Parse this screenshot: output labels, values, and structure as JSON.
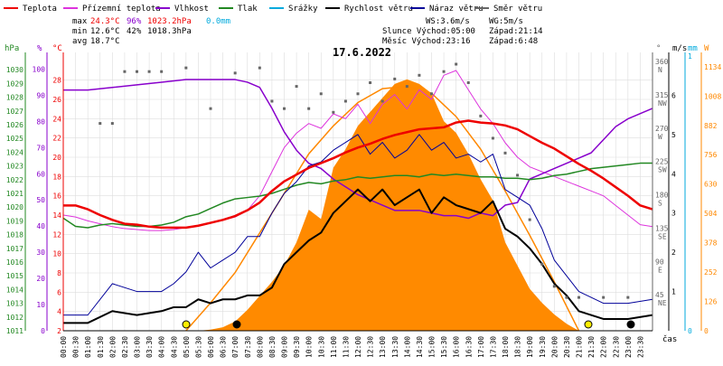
{
  "legend": [
    {
      "label": "Teplota",
      "color": "#ee0000"
    },
    {
      "label": "Přízemní teplota",
      "color": "#dd33dd"
    },
    {
      "label": "Vlhkost",
      "color": "#8800cc"
    },
    {
      "label": "Tlak",
      "color": "#228822"
    },
    {
      "label": "Srážky",
      "color": "#00aadd"
    },
    {
      "label": "Rychlost větru",
      "color": "#000000"
    },
    {
      "label": "Náraz větru",
      "color": "#000099"
    },
    {
      "label": "Směr větru",
      "color": "#666666"
    }
  ],
  "stats": {
    "max_label": "max",
    "min_label": "min",
    "avg_label": "avg",
    "max_temp": "24.3°C",
    "max_hum": "96%",
    "max_press": "1023.2hPa",
    "max_rain": "0.0mm",
    "min_temp": "12.6°C",
    "min_hum": "42%",
    "min_press": "1018.3hPa",
    "avg_temp": "18.7°C"
  },
  "info": {
    "wind_speed": "WS:3.6m/s",
    "wind_gust": "WG:5m/s",
    "sun": "Slunce Východ:05:00",
    "sunset": "Západ:21:14",
    "moon": "Měsíc Východ:23:16",
    "moonset": "Západ:6:48"
  },
  "colors": {
    "temp": "#ee0000",
    "ground": "#dd33dd",
    "humidity": "#8800cc",
    "pressure": "#228822",
    "rain": "#00aadd",
    "wind": "#000000",
    "gust": "#000099",
    "direction": "#666666",
    "solar": "#ff8800",
    "solar_fill": "#ff8a00",
    "grid": "#dddddd"
  },
  "chart_data": {
    "type": "line",
    "title": "17.6.2022",
    "xlabel": "čas",
    "x_ticks": [
      "00:00",
      "00:30",
      "01:00",
      "01:30",
      "02:00",
      "02:30",
      "03:00",
      "03:30",
      "04:00",
      "04:30",
      "05:00",
      "05:30",
      "06:00",
      "06:30",
      "07:00",
      "07:30",
      "08:00",
      "08:30",
      "09:00",
      "09:30",
      "10:00",
      "10:30",
      "11:00",
      "11:30",
      "12:00",
      "12:30",
      "13:00",
      "13:30",
      "14:00",
      "14:30",
      "15:00",
      "15:30",
      "16:00",
      "16:30",
      "17:00",
      "17:30",
      "18:00",
      "18:30",
      "19:00",
      "19:30",
      "20:00",
      "20:30",
      "21:00",
      "21:30",
      "22:00",
      "22:30",
      "23:00",
      "23:30"
    ],
    "xlim": [
      0,
      24
    ],
    "axes": {
      "pressure": {
        "unit": "hPa",
        "range": [
          1011,
          1031
        ],
        "ticks": [
          1011,
          1012,
          1013,
          1014,
          1015,
          1016,
          1017,
          1018,
          1019,
          1020,
          1021,
          1022,
          1023,
          1024,
          1025,
          1026,
          1027,
          1028,
          1029,
          1030
        ]
      },
      "humidity": {
        "unit": "%",
        "range": [
          0,
          105
        ],
        "ticks": [
          0,
          10,
          20,
          30,
          40,
          50,
          60,
          70,
          80,
          90,
          100
        ]
      },
      "temperature": {
        "unit": "°C",
        "range": [
          2,
          30.5
        ],
        "ticks": [
          2,
          4,
          6,
          8,
          10,
          12,
          14,
          16,
          18,
          20,
          22,
          24,
          26,
          28
        ]
      },
      "direction": {
        "unit": "°",
        "range": [
          0,
          371
        ],
        "ticks": [
          {
            "v": 45,
            "l": "45",
            "d": "NE"
          },
          {
            "v": 90,
            "l": "90",
            "d": "E"
          },
          {
            "v": 135,
            "l": "135",
            "d": "SE"
          },
          {
            "v": 180,
            "l": "180",
            "d": "S"
          },
          {
            "v": 225,
            "l": "225",
            "d": "SW"
          },
          {
            "v": 270,
            "l": "270",
            "d": "W"
          },
          {
            "v": 315,
            "l": "315",
            "d": "NW"
          },
          {
            "v": 360,
            "l": "360",
            "d": "N"
          }
        ]
      },
      "wind": {
        "unit": "m/s",
        "range": [
          0,
          7
        ],
        "ticks": [
          1,
          2,
          3,
          4,
          5,
          6
        ]
      },
      "rain": {
        "unit": "mm",
        "range": [
          0,
          1
        ],
        "ticks": [
          0,
          1
        ]
      },
      "solar": {
        "unit": "W",
        "range": [
          0,
          1180
        ],
        "ticks": [
          0,
          126,
          252,
          378,
          504,
          630,
          756,
          882,
          1008,
          1134
        ]
      }
    },
    "series": [
      {
        "name": "Teplota",
        "axis": "temperature",
        "x": [
          0,
          0.5,
          1,
          1.5,
          2,
          2.5,
          3,
          3.5,
          4,
          4.5,
          5,
          5.5,
          6,
          6.5,
          7,
          7.5,
          8,
          8.5,
          9,
          9.5,
          10,
          10.5,
          11,
          11.5,
          12,
          12.5,
          13,
          13.5,
          14,
          14.5,
          15,
          15.5,
          16,
          16.5,
          17,
          17.5,
          18,
          18.5,
          19,
          19.5,
          20,
          20.5,
          21,
          21.5,
          22,
          22.5,
          23,
          23.5,
          24
        ],
        "y": [
          15.0,
          15.0,
          14.6,
          14.0,
          13.5,
          13.1,
          13.0,
          12.8,
          12.7,
          12.7,
          12.7,
          12.9,
          13.2,
          13.5,
          13.9,
          14.5,
          15.3,
          16.5,
          17.5,
          18.2,
          18.9,
          19.4,
          19.9,
          20.5,
          21.0,
          21.4,
          21.9,
          22.3,
          22.6,
          22.9,
          23.0,
          23.1,
          23.6,
          23.8,
          23.6,
          23.5,
          23.3,
          22.9,
          22.2,
          21.5,
          20.9,
          20.1,
          19.3,
          18.6,
          17.8,
          16.9,
          16.0,
          15.0,
          14.6
        ]
      },
      {
        "name": "Přízemní teplota",
        "axis": "temperature",
        "x": [
          0,
          0.5,
          1,
          1.5,
          2,
          2.5,
          3,
          3.5,
          4,
          4.5,
          5,
          5.5,
          6,
          6.5,
          7,
          7.5,
          8,
          8.5,
          9,
          9.5,
          10,
          10.5,
          11,
          11.5,
          12,
          12.5,
          13,
          13.5,
          14,
          14.5,
          15,
          15.5,
          16,
          16.5,
          17,
          17.5,
          18,
          18.5,
          19,
          19.5,
          20,
          20.5,
          21,
          21.5,
          22,
          22.5,
          23,
          23.5,
          24
        ],
        "y": [
          14.0,
          13.8,
          13.4,
          13.1,
          12.8,
          12.6,
          12.5,
          12.4,
          12.4,
          12.5,
          12.7,
          12.9,
          13.2,
          13.5,
          13.8,
          14.5,
          16.0,
          18.5,
          21.0,
          22.5,
          23.5,
          23.0,
          24.5,
          24.0,
          25.5,
          23.5,
          25.5,
          26.5,
          25.0,
          27.0,
          26.0,
          28.5,
          29.0,
          27.0,
          25.0,
          23.5,
          21.5,
          20.0,
          19.0,
          18.5,
          18.0,
          17.5,
          17.0,
          16.5,
          16.0,
          15.0,
          14.0,
          13.0,
          12.8
        ]
      },
      {
        "name": "Vlhkost",
        "axis": "humidity",
        "x": [
          0,
          1,
          2,
          3,
          4,
          5,
          6,
          6.5,
          7,
          7.5,
          8,
          8.5,
          9,
          9.5,
          10,
          10.5,
          11,
          11.5,
          12,
          12.5,
          13,
          13.5,
          14,
          14.5,
          15,
          15.5,
          16,
          16.5,
          17,
          17.5,
          18,
          18.5,
          19,
          19.5,
          20,
          20.5,
          21,
          21.5,
          22,
          22.5,
          23,
          23.5,
          24
        ],
        "y": [
          92,
          92,
          93,
          94,
          95,
          96,
          96,
          96,
          96,
          95,
          93,
          85,
          76,
          69,
          64,
          62,
          58,
          55,
          52,
          50,
          48,
          46,
          46,
          46,
          45,
          44,
          44,
          43,
          45,
          44,
          48,
          49,
          58,
          60,
          62,
          64,
          66,
          68,
          73,
          78,
          81,
          83,
          85
        ]
      },
      {
        "name": "Tlak",
        "axis": "pressure",
        "x": [
          0,
          0.5,
          1,
          1.5,
          2,
          2.5,
          3,
          3.5,
          4,
          4.5,
          5,
          5.5,
          6,
          6.5,
          7,
          7.5,
          8,
          8.5,
          9,
          9.5,
          10,
          10.5,
          11,
          11.5,
          12,
          12.5,
          13,
          13.5,
          14,
          14.5,
          15,
          15.5,
          16,
          16.5,
          17,
          17.5,
          18,
          18.5,
          19,
          19.5,
          20,
          20.5,
          21,
          21.5,
          22,
          22.5,
          23,
          23.5,
          24
        ],
        "y": [
          1019.2,
          1018.6,
          1018.5,
          1018.7,
          1018.8,
          1018.7,
          1018.6,
          1018.6,
          1018.7,
          1018.9,
          1019.3,
          1019.5,
          1019.9,
          1020.3,
          1020.6,
          1020.7,
          1020.8,
          1021.0,
          1021.3,
          1021.6,
          1021.8,
          1021.7,
          1021.9,
          1022.0,
          1022.2,
          1022.1,
          1022.2,
          1022.3,
          1022.3,
          1022.2,
          1022.4,
          1022.3,
          1022.4,
          1022.3,
          1022.2,
          1022.2,
          1022.1,
          1022.1,
          1022.0,
          1022.1,
          1022.3,
          1022.4,
          1022.6,
          1022.8,
          1022.9,
          1023.0,
          1023.1,
          1023.2,
          1023.2
        ]
      },
      {
        "name": "Rychlost větru",
        "axis": "wind",
        "x": [
          0,
          1,
          2,
          3,
          4,
          4.5,
          5,
          5.5,
          6,
          6.5,
          7,
          7.5,
          8,
          8.5,
          9,
          9.5,
          10,
          10.5,
          11,
          11.5,
          12,
          12.5,
          13,
          13.5,
          14,
          14.5,
          15,
          15.5,
          16,
          16.5,
          17,
          17.5,
          18,
          18.5,
          19,
          19.5,
          20,
          20.5,
          21,
          22,
          23,
          24
        ],
        "y": [
          0.2,
          0.2,
          0.5,
          0.4,
          0.5,
          0.6,
          0.6,
          0.8,
          0.7,
          0.8,
          0.8,
          0.9,
          0.9,
          1.1,
          1.7,
          2.0,
          2.3,
          2.5,
          3.0,
          3.3,
          3.6,
          3.3,
          3.6,
          3.2,
          3.4,
          3.6,
          3.0,
          3.4,
          3.2,
          3.1,
          3.0,
          3.3,
          2.6,
          2.4,
          2.1,
          1.7,
          1.2,
          0.9,
          0.5,
          0.3,
          0.3,
          0.4
        ]
      },
      {
        "name": "Náraz větru",
        "axis": "wind",
        "x": [
          0,
          1,
          2,
          3,
          4,
          4.5,
          5,
          5.5,
          6,
          6.5,
          7,
          7.5,
          8,
          8.5,
          9,
          9.5,
          10,
          10.5,
          11,
          11.5,
          12,
          12.5,
          13,
          13.5,
          14,
          14.5,
          15,
          15.5,
          16,
          16.5,
          17,
          17.5,
          18,
          18.5,
          19,
          19.5,
          20,
          20.5,
          21,
          22,
          23,
          24
        ],
        "y": [
          0.4,
          0.4,
          1.2,
          1.0,
          1.0,
          1.2,
          1.5,
          2.0,
          1.6,
          1.8,
          2.0,
          2.4,
          2.4,
          3.0,
          3.5,
          3.8,
          4.2,
          4.3,
          4.6,
          4.8,
          5.0,
          4.5,
          4.8,
          4.4,
          4.6,
          5.0,
          4.6,
          4.8,
          4.4,
          4.5,
          4.3,
          4.5,
          3.6,
          3.4,
          3.2,
          2.6,
          1.8,
          1.4,
          1.0,
          0.7,
          0.7,
          0.8
        ]
      },
      {
        "name": "Směr větru",
        "axis": "direction",
        "x": [
          1.5,
          2.0,
          2.5,
          3.0,
          3.5,
          4.0,
          5.0,
          6.0,
          7.0,
          8.0,
          8.5,
          9.0,
          9.5,
          10.0,
          10.5,
          11.0,
          11.5,
          12.0,
          12.5,
          13.0,
          13.5,
          14.0,
          14.5,
          15.0,
          15.5,
          16.0,
          16.5,
          17.0,
          17.5,
          18.0,
          18.5,
          19.0,
          19.5,
          20.0,
          20.5,
          21.0,
          22.0,
          23.0
        ],
        "y": [
          280,
          280,
          350,
          350,
          350,
          350,
          355,
          300,
          348,
          355,
          310,
          300,
          330,
          300,
          320,
          295,
          310,
          320,
          335,
          310,
          340,
          330,
          345,
          320,
          350,
          360,
          335,
          290,
          260,
          240,
          210,
          150,
          90,
          60,
          45,
          45,
          45,
          45
        ]
      },
      {
        "name": "Solar",
        "axis": "solar",
        "x": [
          0,
          4.5,
          5,
          5.5,
          6,
          6.5,
          7,
          7.5,
          8,
          8.5,
          9,
          9.5,
          10,
          10.5,
          11,
          11.5,
          12,
          12.5,
          13,
          13.5,
          14,
          14.5,
          15,
          15.5,
          16,
          16.5,
          17,
          17.5,
          18,
          18.5,
          19,
          19.5,
          20,
          20.5,
          21,
          24
        ],
        "y": [
          0,
          0,
          0,
          0,
          5,
          15,
          40,
          90,
          150,
          210,
          280,
          380,
          520,
          480,
          700,
          780,
          880,
          940,
          1000,
          1060,
          1080,
          1060,
          1020,
          900,
          850,
          760,
          650,
          560,
          380,
          280,
          180,
          120,
          70,
          30,
          0,
          0
        ]
      },
      {
        "name": "Max solar",
        "axis": "solar",
        "x": [
          5,
          6,
          7,
          8,
          9,
          10,
          11,
          12,
          13,
          14,
          15,
          16,
          17,
          18,
          19,
          20,
          21
        ],
        "y": [
          0,
          120,
          250,
          420,
          590,
          760,
          880,
          980,
          1040,
          1050,
          1020,
          920,
          780,
          600,
          410,
          210,
          0
        ]
      }
    ]
  }
}
